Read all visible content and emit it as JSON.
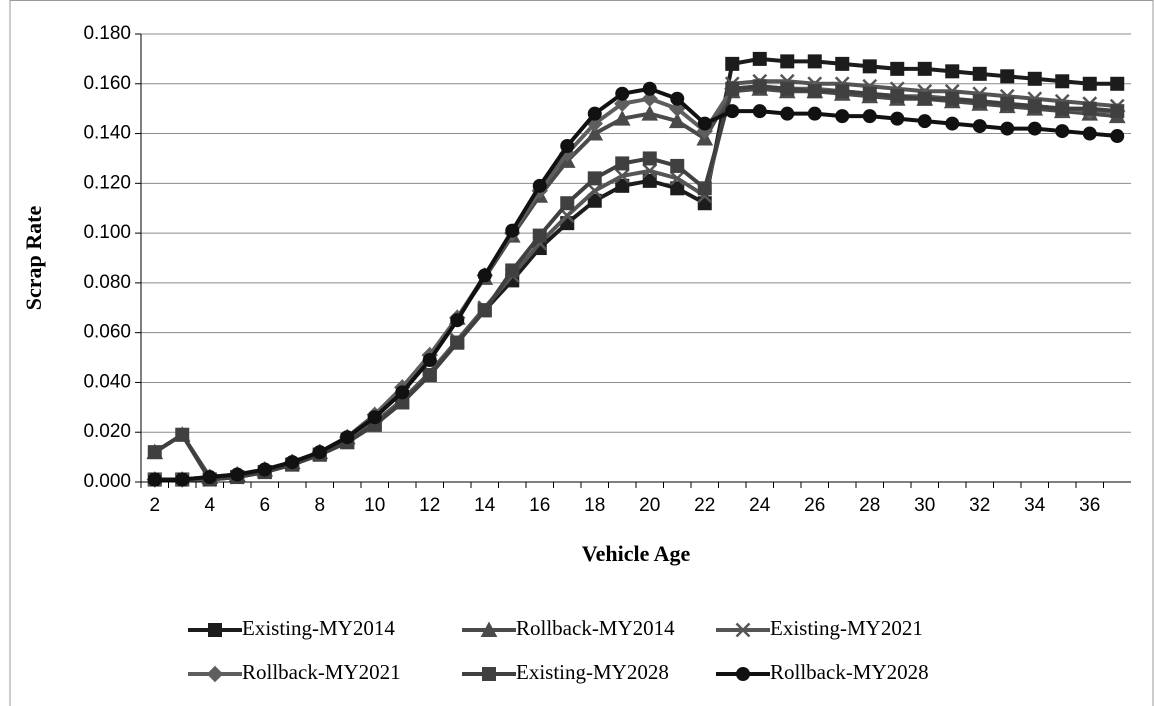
{
  "chart_data": {
    "type": "line",
    "x_label": "Vehicle Age",
    "y_label": "Scrap Rate",
    "x": [
      2,
      3,
      4,
      5,
      6,
      7,
      8,
      9,
      10,
      11,
      12,
      13,
      14,
      15,
      16,
      17,
      18,
      19,
      20,
      21,
      22,
      23,
      24,
      25,
      26,
      27,
      28,
      29,
      30,
      31,
      32,
      33,
      34,
      35,
      36,
      37
    ],
    "xlim": [
      1.5,
      37.5
    ],
    "xticks": [
      2,
      4,
      6,
      8,
      10,
      12,
      14,
      16,
      18,
      20,
      22,
      24,
      26,
      28,
      30,
      32,
      34,
      36
    ],
    "ylim": [
      0,
      0.18
    ],
    "yticks": [
      {
        "value": 0,
        "label": "0.000"
      },
      {
        "value": 0.02,
        "label": "0.020"
      },
      {
        "value": 0.04,
        "label": "0.040"
      },
      {
        "value": 0.06,
        "label": "0.060"
      },
      {
        "value": 0.08,
        "label": "0.080"
      },
      {
        "value": 0.1,
        "label": "0.100"
      },
      {
        "value": 0.12,
        "label": "0.120"
      },
      {
        "value": 0.14,
        "label": "0.140"
      },
      {
        "value": 0.16,
        "label": "0.160"
      },
      {
        "value": 0.18,
        "label": "0.180"
      }
    ],
    "grid": true,
    "legend": "bottom",
    "series": [
      {
        "name": "Existing-MY2014",
        "color": "#1c1c1c",
        "marker": "square",
        "values": [
          0.001,
          0.001,
          0.001,
          0.002,
          0.004,
          0.007,
          0.011,
          0.016,
          0.023,
          0.032,
          0.043,
          0.056,
          0.069,
          0.081,
          0.094,
          0.104,
          0.113,
          0.119,
          0.121,
          0.118,
          0.112,
          0.168,
          0.17,
          0.169,
          0.169,
          0.168,
          0.167,
          0.166,
          0.166,
          0.165,
          0.164,
          0.163,
          0.162,
          0.161,
          0.16,
          0.16
        ]
      },
      {
        "name": "Rollback-MY2014",
        "color": "#4a4a4a",
        "marker": "triangle",
        "values": [
          0.012,
          0.019,
          0.002,
          0.003,
          0.005,
          0.008,
          0.012,
          0.018,
          0.027,
          0.038,
          0.051,
          0.066,
          0.082,
          0.099,
          0.115,
          0.129,
          0.14,
          0.146,
          0.148,
          0.145,
          0.138,
          0.157,
          0.158,
          0.157,
          0.157,
          0.156,
          0.155,
          0.154,
          0.154,
          0.153,
          0.152,
          0.151,
          0.15,
          0.149,
          0.148,
          0.147
        ]
      },
      {
        "name": "Existing-MY2021",
        "color": "#555555",
        "marker": "x",
        "values": [
          0.001,
          0.001,
          0.001,
          0.002,
          0.004,
          0.007,
          0.011,
          0.017,
          0.024,
          0.033,
          0.044,
          0.057,
          0.07,
          0.083,
          0.096,
          0.107,
          0.117,
          0.123,
          0.125,
          0.122,
          0.115,
          0.16,
          0.161,
          0.161,
          0.16,
          0.16,
          0.159,
          0.158,
          0.157,
          0.157,
          0.156,
          0.155,
          0.154,
          0.153,
          0.152,
          0.151
        ]
      },
      {
        "name": "Rollback-MY2021",
        "color": "#5e5e5e",
        "marker": "diamond",
        "values": [
          0.001,
          0.001,
          0.002,
          0.003,
          0.005,
          0.008,
          0.012,
          0.018,
          0.027,
          0.038,
          0.051,
          0.066,
          0.083,
          0.1,
          0.117,
          0.132,
          0.144,
          0.152,
          0.154,
          0.15,
          0.141,
          0.158,
          0.159,
          0.158,
          0.158,
          0.157,
          0.156,
          0.155,
          0.155,
          0.154,
          0.153,
          0.152,
          0.151,
          0.15,
          0.149,
          0.149
        ]
      },
      {
        "name": "Existing-MY2028",
        "color": "#404040",
        "marker": "square",
        "values": [
          0.012,
          0.019,
          0.001,
          0.002,
          0.004,
          0.007,
          0.011,
          0.016,
          0.023,
          0.032,
          0.043,
          0.056,
          0.069,
          0.085,
          0.099,
          0.112,
          0.122,
          0.128,
          0.13,
          0.127,
          0.118,
          0.158,
          0.159,
          0.158,
          0.157,
          0.157,
          0.156,
          0.155,
          0.154,
          0.154,
          0.153,
          0.152,
          0.151,
          0.15,
          0.15,
          0.149
        ]
      },
      {
        "name": "Rollback-MY2028",
        "color": "#111111",
        "marker": "circle",
        "values": [
          0.001,
          0.001,
          0.002,
          0.003,
          0.005,
          0.008,
          0.012,
          0.018,
          0.026,
          0.036,
          0.049,
          0.065,
          0.083,
          0.101,
          0.119,
          0.135,
          0.148,
          0.156,
          0.158,
          0.154,
          0.144,
          0.149,
          0.149,
          0.148,
          0.148,
          0.147,
          0.147,
          0.146,
          0.145,
          0.144,
          0.143,
          0.142,
          0.142,
          0.141,
          0.14,
          0.139
        ]
      }
    ]
  }
}
